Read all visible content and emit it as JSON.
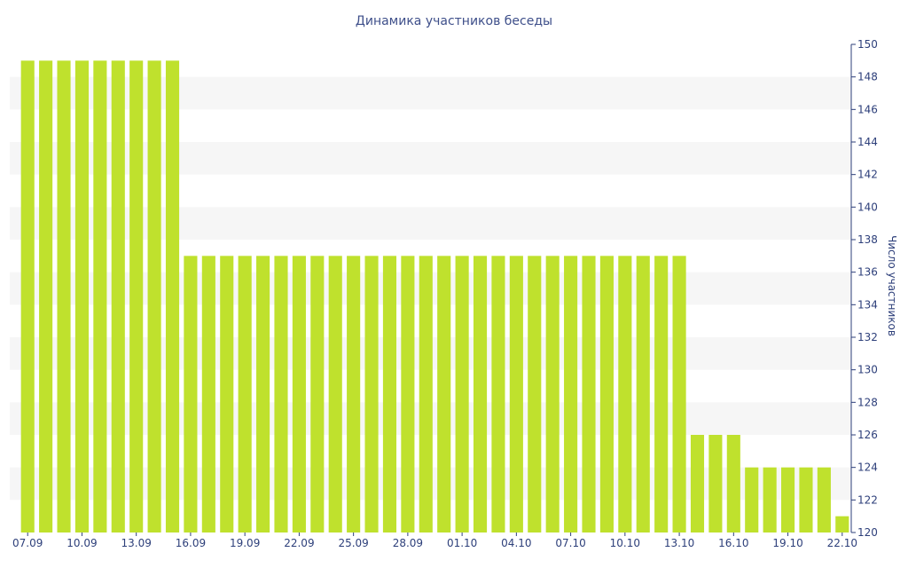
{
  "chart_data": {
    "type": "bar",
    "title": "Динамика участников беседы",
    "xlabel": "",
    "ylabel": "Число участников",
    "ylim": [
      120,
      150
    ],
    "y_ticks": [
      120,
      122,
      124,
      126,
      128,
      130,
      132,
      134,
      136,
      138,
      140,
      142,
      144,
      146,
      148,
      150
    ],
    "y_axis_position": "right",
    "grid": "alternating horizontal bands",
    "colors": {
      "bar": "#bfe12d",
      "band": "#f6f6f6",
      "axis": "#2d3f7a",
      "title": "#3e4f8a"
    },
    "categories": [
      "07.09",
      "08.09",
      "09.09",
      "10.09",
      "11.09",
      "12.09",
      "13.09",
      "14.09",
      "15.09",
      "16.09",
      "17.09",
      "18.09",
      "19.09",
      "20.09",
      "21.09",
      "22.09",
      "23.09",
      "24.09",
      "25.09",
      "26.09",
      "27.09",
      "28.09",
      "29.09",
      "30.09",
      "01.10",
      "02.10",
      "03.10",
      "04.10",
      "05.10",
      "06.10",
      "07.10",
      "08.10",
      "09.10",
      "10.10",
      "11.10",
      "12.10",
      "13.10",
      "14.10",
      "15.10",
      "16.10",
      "17.10",
      "18.10",
      "19.10",
      "20.10",
      "21.10",
      "22.10"
    ],
    "x_tick_labels": [
      "07.09",
      "10.09",
      "13.09",
      "16.09",
      "19.09",
      "22.09",
      "25.09",
      "28.09",
      "01.10",
      "04.10",
      "07.10",
      "10.10",
      "13.10",
      "16.10",
      "19.10",
      "22.10"
    ],
    "values": [
      149,
      149,
      149,
      149,
      149,
      149,
      149,
      149,
      149,
      137,
      137,
      137,
      137,
      137,
      137,
      137,
      137,
      137,
      137,
      137,
      137,
      137,
      137,
      137,
      137,
      137,
      137,
      137,
      137,
      137,
      137,
      137,
      137,
      137,
      137,
      137,
      137,
      126,
      126,
      126,
      124,
      124,
      124,
      124,
      124,
      121
    ]
  }
}
